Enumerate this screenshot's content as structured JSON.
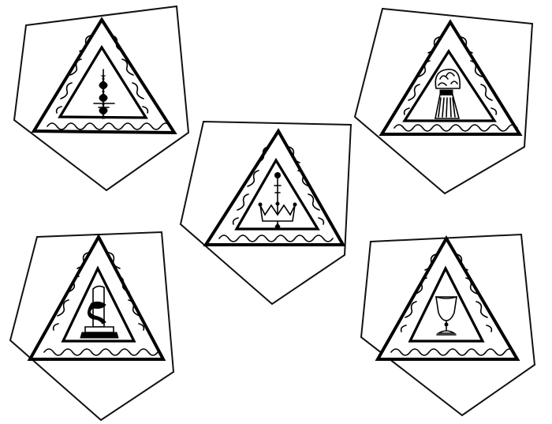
{
  "figure": {
    "ink_color": "#000000",
    "paper_color": "#ffffff",
    "emblems": [
      {
        "name": "twisted-column",
        "icon": "twisted-column-icon"
      },
      {
        "name": "wheat-sheaf",
        "icon": "wheat-sheaf-icon"
      },
      {
        "name": "crown-and-scepter",
        "icon": "crown-scepter-icon"
      },
      {
        "name": "serpent-on-column",
        "icon": "serpent-column-icon"
      },
      {
        "name": "chalice",
        "icon": "chalice-icon"
      }
    ]
  }
}
